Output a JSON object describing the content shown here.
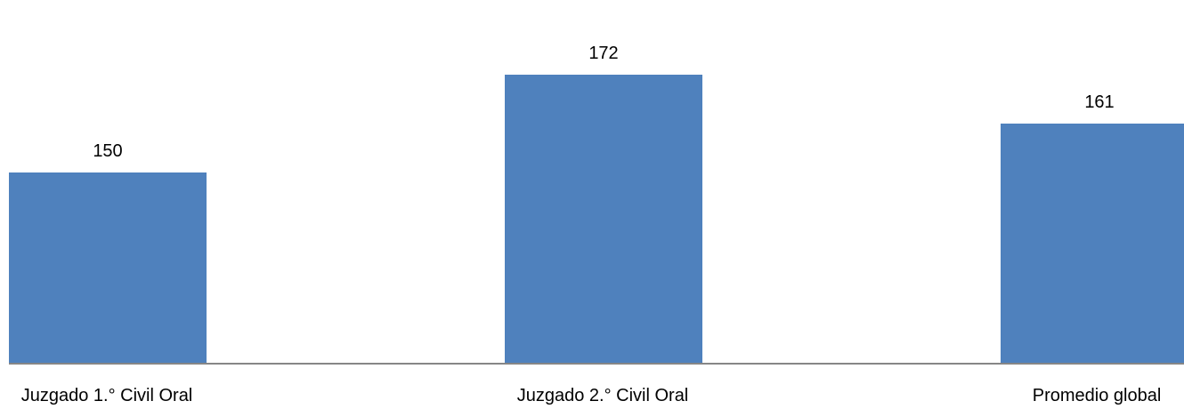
{
  "chart_data": {
    "type": "bar",
    "title": "",
    "xlabel": "",
    "ylabel": "",
    "categories": [
      "Juzgado 1.° Civil Oral",
      "Juzgado 2.° Civil Oral",
      "Promedio global"
    ],
    "values": [
      150,
      172,
      161
    ],
    "data_labels": [
      "150",
      "172",
      "161"
    ],
    "ylim": [
      107,
      172
    ],
    "grid": false,
    "legend": "none",
    "bar_color": "#4F81BD",
    "axis_color": "#868686"
  }
}
